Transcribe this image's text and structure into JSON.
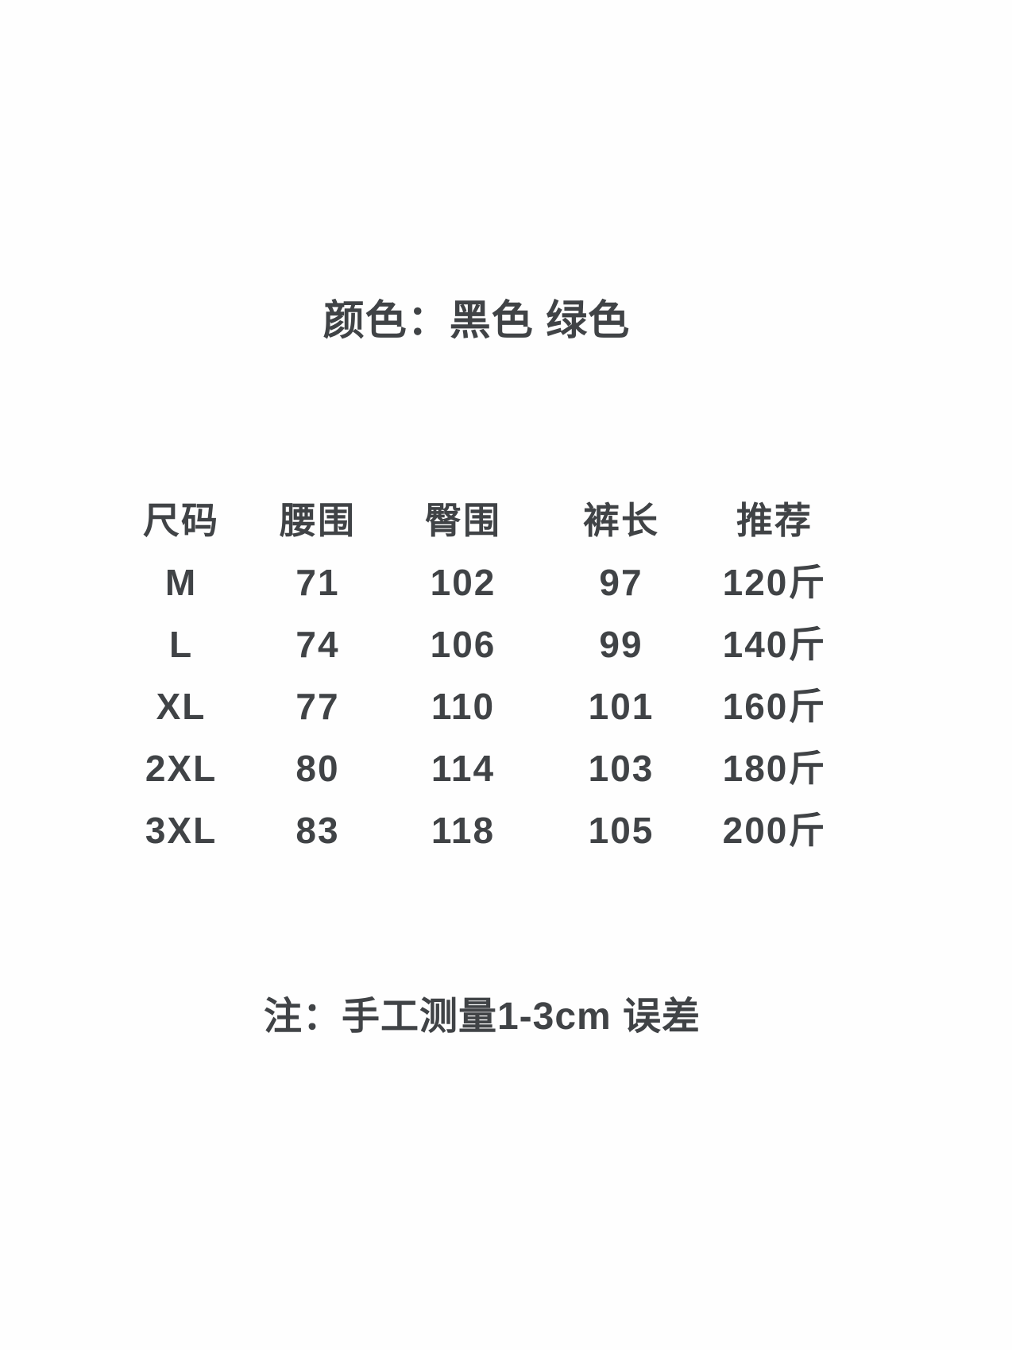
{
  "colors": {
    "background": "#fefefe",
    "text": "#404346"
  },
  "title": {
    "text": "颜色：黑色 绿色"
  },
  "size_table": {
    "headers": {
      "size": "尺码",
      "waist": "腰围",
      "hip": "臀围",
      "length": "裤长",
      "recommend": "推荐"
    },
    "rows": [
      {
        "size": "M",
        "waist": "71",
        "hip": "102",
        "length": "97",
        "recommend": "120斤"
      },
      {
        "size": "L",
        "waist": "74",
        "hip": "106",
        "length": "99",
        "recommend": "140斤"
      },
      {
        "size": "XL",
        "waist": "77",
        "hip": "110",
        "length": "101",
        "recommend": "160斤"
      },
      {
        "size": "2XL",
        "waist": "80",
        "hip": "114",
        "length": "103",
        "recommend": "180斤"
      },
      {
        "size": "3XL",
        "waist": "83",
        "hip": "118",
        "length": "105",
        "recommend": "200斤"
      }
    ]
  },
  "note": {
    "text": "注：手工测量1-3cm 误差"
  }
}
